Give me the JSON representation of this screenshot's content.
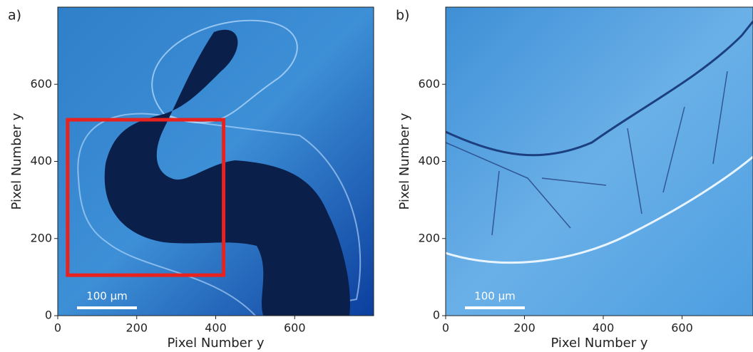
{
  "chart_data": [
    {
      "type": "image",
      "panel_label": "a)",
      "xlabel": "Pixel Number y",
      "ylabel": "Pixel Number y",
      "xlim": [
        0,
        800
      ],
      "ylim": [
        0,
        800
      ],
      "xticks": [
        0,
        200,
        400,
        600
      ],
      "yticks": [
        0,
        200,
        400,
        600
      ],
      "scale_bar": "100 μm",
      "rectangle": {
        "x": [
          25,
          420
        ],
        "y": [
          105,
          508
        ],
        "color": "#e8231f"
      }
    },
    {
      "type": "image",
      "panel_label": "b)",
      "xlabel": "Pixel Number y",
      "ylabel": "Pixel Number y",
      "xlim": [
        0,
        780
      ],
      "ylim": [
        0,
        800
      ],
      "xticks": [
        0,
        200,
        400,
        600
      ],
      "yticks": [
        0,
        200,
        400,
        600
      ],
      "scale_bar": "100 μm"
    }
  ]
}
